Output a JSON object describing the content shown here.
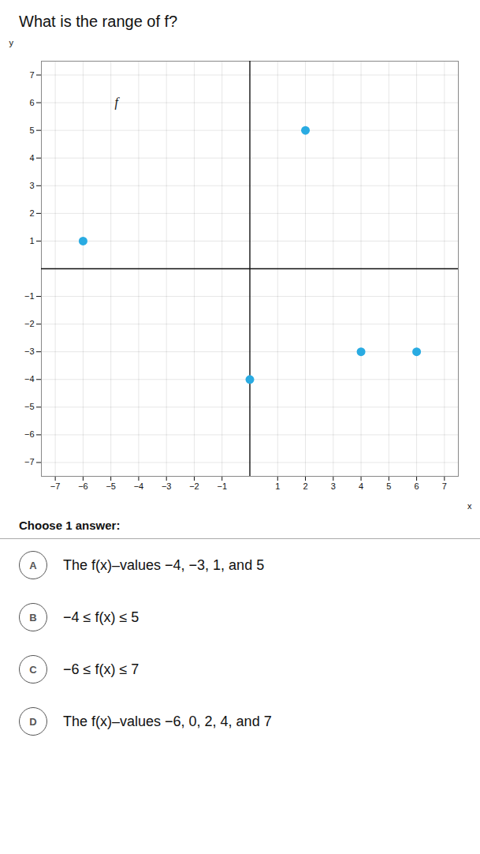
{
  "chart_data": {
    "type": "scatter",
    "title": "What is the range of f?",
    "x": [
      -6,
      2,
      0,
      4,
      6
    ],
    "values": [
      1,
      5,
      -4,
      -3,
      -3
    ],
    "color": "#29abe2",
    "xlabel": "x",
    "ylabel": "y",
    "xlim": [
      -7.5,
      7.5
    ],
    "ylim": [
      -7.5,
      7.5
    ],
    "xticks": [
      -7,
      -6,
      -5,
      -4,
      -3,
      -2,
      -1,
      1,
      2,
      3,
      4,
      5,
      6,
      7
    ],
    "yticks": [
      -7,
      -6,
      -5,
      -4,
      -3,
      -2,
      -1,
      1,
      2,
      3,
      4,
      5,
      6,
      7
    ],
    "grid": true,
    "annotations": [
      {
        "text": "f",
        "x": -4.8,
        "y": 6.0
      }
    ],
    "question": {
      "prompt": "Choose 1 answer:",
      "options": [
        {
          "label": "A",
          "text": "The f(x)–values −4, −3, 1, and 5"
        },
        {
          "label": "B",
          "text": "−4 ≤ f(x) ≤ 5"
        },
        {
          "label": "C",
          "text": "−6 ≤ f(x) ≤ 7"
        },
        {
          "label": "D",
          "text": "The f(x)–values −6, 0, 2, 4, and 7"
        }
      ]
    }
  }
}
